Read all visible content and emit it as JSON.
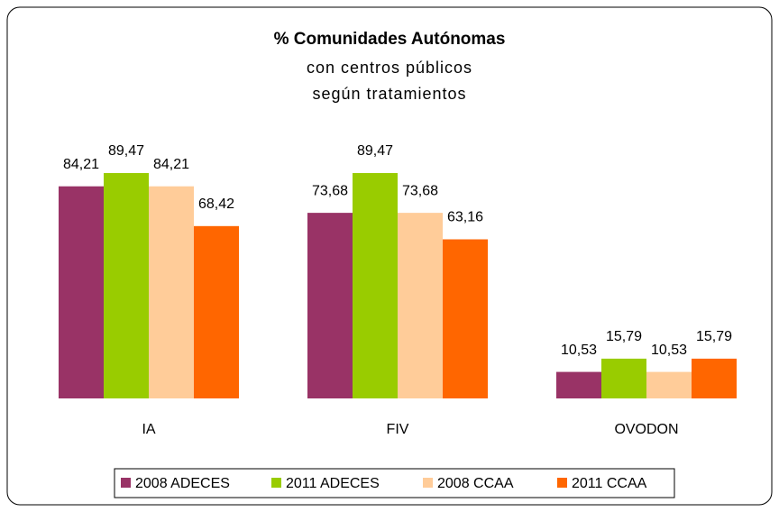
{
  "chart_data": {
    "type": "bar",
    "title": "% Comunidades Autónomas",
    "subtitle": [
      "con centros públicos",
      "según tratamientos"
    ],
    "categories": [
      "IA",
      "FIV",
      "OVODON"
    ],
    "series": [
      {
        "name": "2008 ADECES",
        "color": "#993366",
        "values": [
          84.21,
          73.68,
          10.53
        ],
        "value_labels": [
          "84,21",
          "73,68",
          "10,53"
        ]
      },
      {
        "name": "2011 ADECES",
        "color": "#99cc00",
        "values": [
          89.47,
          89.47,
          15.79
        ],
        "value_labels": [
          "89,47",
          "89,47",
          "15,79"
        ]
      },
      {
        "name": "2008 CCAA",
        "color": "#ffcc99",
        "values": [
          84.21,
          73.68,
          10.53
        ],
        "value_labels": [
          "84,21",
          "73,68",
          "10,53"
        ]
      },
      {
        "name": "2011 CCAA",
        "color": "#ff6600",
        "values": [
          68.42,
          63.16,
          15.79
        ],
        "value_labels": [
          "68,42",
          "63,16",
          "15,79"
        ]
      }
    ],
    "legend": "bottom"
  }
}
